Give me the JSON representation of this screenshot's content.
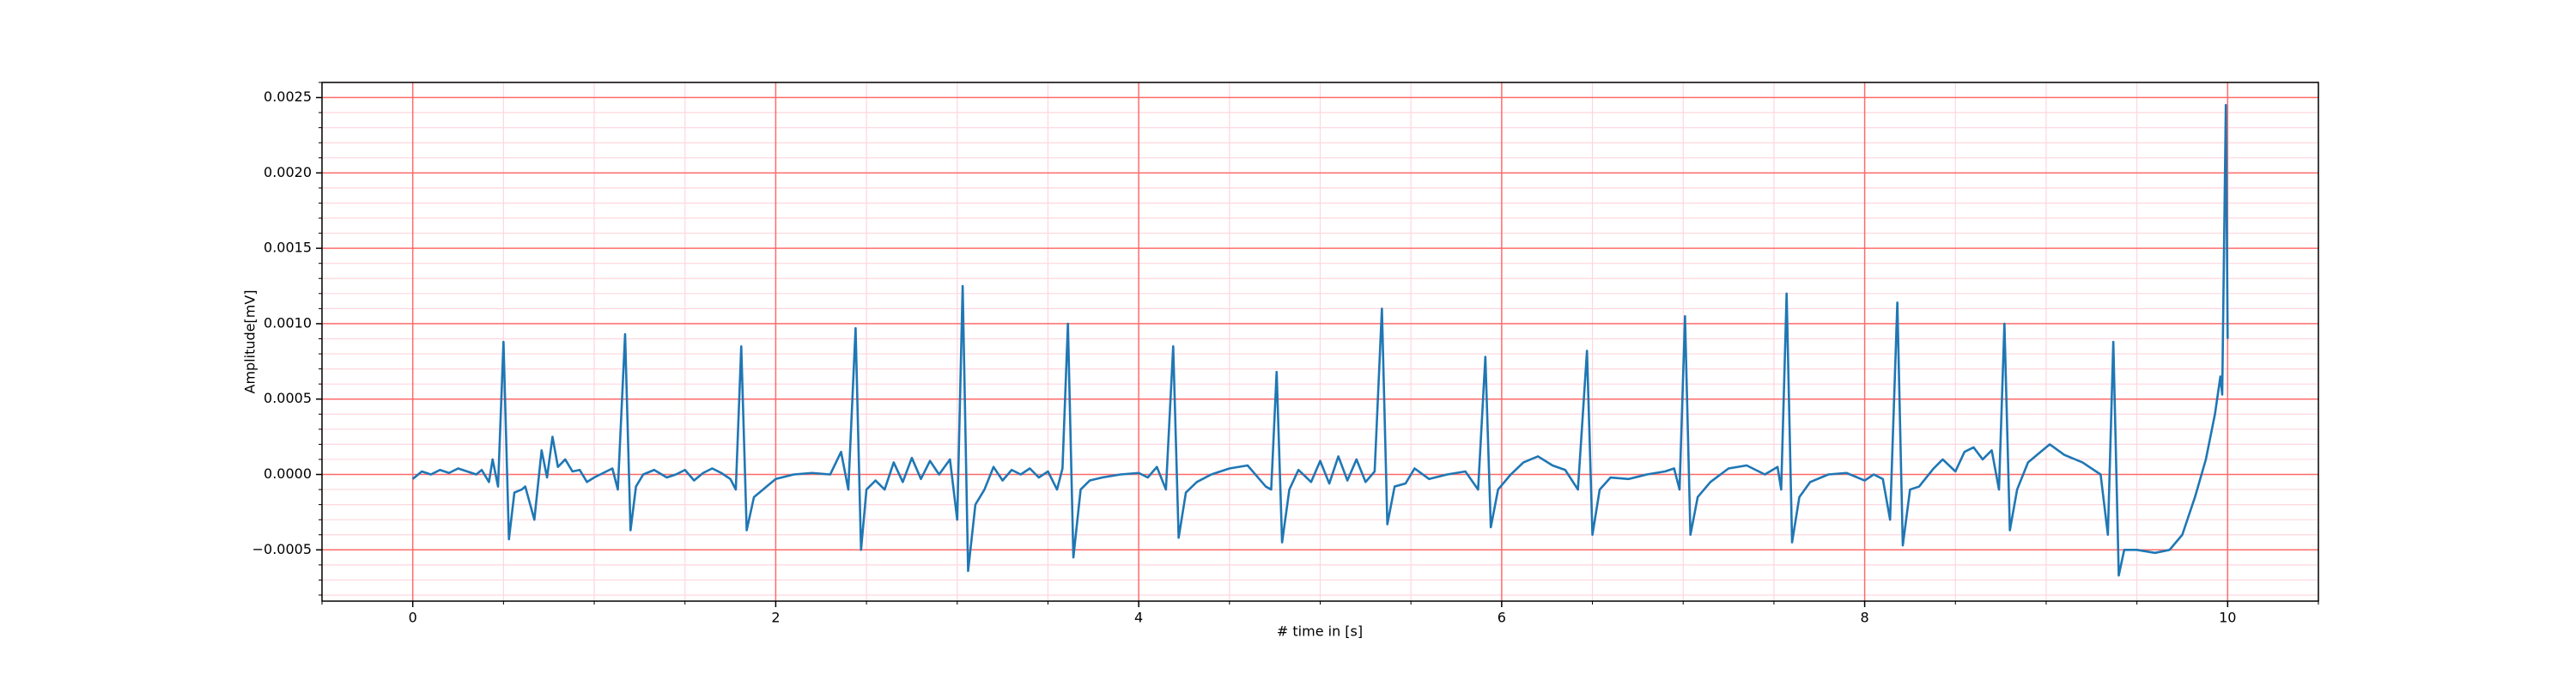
{
  "chart_data": {
    "type": "line",
    "xlabel": "# time in [s]",
    "ylabel": "Amplitude[mV]",
    "xlim": [
      -0.5,
      10.5
    ],
    "ylim": [
      -0.00084,
      0.0026
    ],
    "xticks": [
      0,
      2,
      4,
      6,
      8,
      10
    ],
    "yticks": [
      {
        "value": -0.0005,
        "label": "−0.0005"
      },
      {
        "value": 0,
        "label": "0.0000"
      },
      {
        "value": 0.0005,
        "label": "0.0005"
      },
      {
        "value": 0.001,
        "label": "0.0010"
      },
      {
        "value": 0.0015,
        "label": "0.0015"
      },
      {
        "value": 0.002,
        "label": "0.0020"
      },
      {
        "value": 0.0025,
        "label": "0.0025"
      }
    ],
    "xminorticks": [
      -0.5,
      0.5,
      1,
      1.5,
      2.5,
      3,
      3.5,
      4.5,
      5,
      5.5,
      6.5,
      7,
      7.5,
      8.5,
      9,
      9.5,
      10.5
    ],
    "yminorticks": [
      -0.0008,
      -0.0007,
      -0.0006,
      -0.0004,
      -0.0003,
      -0.0002,
      -0.0001,
      0.0001,
      0.0002,
      0.0003,
      0.0004,
      0.0006,
      0.0007,
      0.0008,
      0.0009,
      0.0011,
      0.0012,
      0.0013,
      0.0014,
      0.0016,
      0.0017,
      0.0018,
      0.0019,
      0.0021,
      0.0022,
      0.0023,
      0.0024,
      0.0026
    ],
    "grid": true,
    "major_grid_color": "#ff6b6b",
    "minor_grid_color": "#ffd6de",
    "series": [
      {
        "color": "#1f77b4",
        "x": [
          0,
          0.05,
          0.1,
          0.15,
          0.2,
          0.25,
          0.3,
          0.35,
          0.38,
          0.42,
          0.44,
          0.47,
          0.5,
          0.53,
          0.56,
          0.6,
          0.62,
          0.67,
          0.71,
          0.74,
          0.77,
          0.8,
          0.84,
          0.88,
          0.92,
          0.96,
          1.0,
          1.05,
          1.1,
          1.13,
          1.17,
          1.2,
          1.23,
          1.27,
          1.33,
          1.4,
          1.45,
          1.5,
          1.55,
          1.6,
          1.65,
          1.7,
          1.75,
          1.78,
          1.81,
          1.84,
          1.88,
          1.95,
          2.0,
          2.1,
          2.2,
          2.3,
          2.36,
          2.4,
          2.44,
          2.47,
          2.5,
          2.55,
          2.6,
          2.65,
          2.7,
          2.75,
          2.8,
          2.85,
          2.9,
          2.96,
          3.0,
          3.03,
          3.06,
          3.1,
          3.15,
          3.2,
          3.25,
          3.3,
          3.35,
          3.4,
          3.45,
          3.5,
          3.55,
          3.58,
          3.61,
          3.64,
          3.68,
          3.73,
          3.8,
          3.9,
          4.0,
          4.05,
          4.1,
          4.15,
          4.19,
          4.22,
          4.26,
          4.32,
          4.4,
          4.5,
          4.6,
          4.7,
          4.73,
          4.76,
          4.79,
          4.83,
          4.88,
          4.95,
          5.0,
          5.05,
          5.1,
          5.15,
          5.2,
          5.25,
          5.3,
          5.34,
          5.37,
          5.41,
          5.47,
          5.52,
          5.6,
          5.7,
          5.8,
          5.87,
          5.91,
          5.94,
          5.98,
          6.05,
          6.12,
          6.2,
          6.28,
          6.35,
          6.42,
          6.47,
          6.5,
          6.54,
          6.6,
          6.7,
          6.8,
          6.9,
          6.95,
          6.98,
          7.01,
          7.04,
          7.08,
          7.15,
          7.25,
          7.35,
          7.45,
          7.52,
          7.54,
          7.57,
          7.6,
          7.64,
          7.7,
          7.8,
          7.9,
          8.0,
          8.05,
          8.1,
          8.14,
          8.18,
          8.21,
          8.25,
          8.3,
          8.38,
          8.43,
          8.5,
          8.55,
          8.6,
          8.65,
          8.7,
          8.74,
          8.77,
          8.8,
          8.84,
          8.9,
          8.97,
          9.02,
          9.1,
          9.2,
          9.3,
          9.34,
          9.37,
          9.4,
          9.43,
          9.5,
          9.6,
          9.68,
          9.75,
          9.82,
          9.88,
          9.93,
          9.96,
          9.97,
          9.99,
          10.0
        ],
        "values": [
          -3e-05,
          2e-05,
          0.0,
          3e-05,
          1e-05,
          4e-05,
          2e-05,
          0.0,
          3e-05,
          -5e-05,
          0.0001,
          -8e-05,
          0.00088,
          -0.00043,
          -0.00012,
          -0.0001,
          -8e-05,
          -0.0003,
          0.00016,
          -2e-05,
          0.00025,
          5e-05,
          0.0001,
          2e-05,
          3e-05,
          -5e-05,
          -2e-05,
          1e-05,
          4e-05,
          -0.0001,
          0.00093,
          -0.00037,
          -8e-05,
          0.0,
          3e-05,
          -2e-05,
          0.0,
          3e-05,
          -4e-05,
          1e-05,
          4e-05,
          1e-05,
          -3e-05,
          -0.0001,
          0.00085,
          -0.00037,
          -0.00015,
          -8e-05,
          -3e-05,
          0.0,
          1e-05,
          0.0,
          0.00015,
          -0.0001,
          0.00097,
          -0.0005,
          -0.0001,
          -4e-05,
          -0.0001,
          8e-05,
          -5e-05,
          0.00011,
          -3e-05,
          9e-05,
          0.0,
          0.0001,
          -0.0003,
          0.00125,
          -0.00064,
          -0.0002,
          -0.0001,
          5e-05,
          -4e-05,
          3e-05,
          0.0,
          4e-05,
          -2e-05,
          2e-05,
          -0.0001,
          4e-05,
          0.001,
          -0.00055,
          -0.0001,
          -4e-05,
          -2e-05,
          0.0,
          1e-05,
          -2e-05,
          5e-05,
          -0.0001,
          0.00085,
          -0.00042,
          -0.00012,
          -5e-05,
          0.0,
          4e-05,
          6e-05,
          -8e-05,
          -0.0001,
          0.00068,
          -0.00045,
          -0.0001,
          3e-05,
          -5e-05,
          9e-05,
          -6e-05,
          0.00012,
          -4e-05,
          0.0001,
          -5e-05,
          2e-05,
          0.0011,
          -0.00033,
          -8e-05,
          -6e-05,
          4e-05,
          -3e-05,
          0.0,
          2e-05,
          -0.0001,
          0.00078,
          -0.00035,
          -0.0001,
          0.0,
          8e-05,
          0.00012,
          6e-05,
          3e-05,
          -0.0001,
          0.00082,
          -0.0004,
          -0.0001,
          -2e-05,
          -3e-05,
          0.0,
          2e-05,
          4e-05,
          -0.0001,
          0.00105,
          -0.0004,
          -0.00015,
          -5e-05,
          4e-05,
          6e-05,
          0.0,
          5e-05,
          -0.0001,
          0.0012,
          -0.00045,
          -0.00015,
          -5e-05,
          0.0,
          1e-05,
          -4e-05,
          0.0,
          -3e-05,
          -0.0003,
          0.00114,
          -0.00047,
          -0.0001,
          -8e-05,
          4e-05,
          0.0001,
          2e-05,
          0.00015,
          0.00018,
          0.0001,
          0.00016,
          -0.0001,
          0.001,
          -0.00037,
          -0.0001,
          8e-05,
          0.00015,
          0.0002,
          0.00013,
          8e-05,
          0.0,
          -0.0004,
          0.00088,
          -0.00067,
          -0.0005,
          -0.0005,
          -0.00052,
          -0.0005,
          -0.0004,
          -0.00015,
          0.0001,
          0.0004,
          0.00065,
          0.00053,
          0.00245,
          0.0009
        ]
      }
    ]
  }
}
